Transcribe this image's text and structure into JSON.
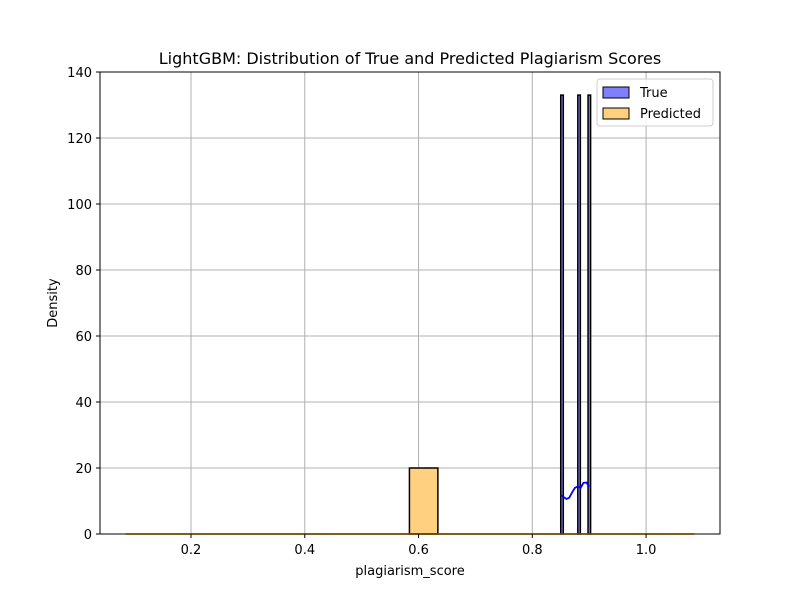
{
  "chart_data": {
    "type": "histogram",
    "title": "LightGBM: Distribution of True and Predicted Plagiarism Scores",
    "xlabel": "plagiarism_score",
    "ylabel": "Density",
    "xlim": [
      0.04,
      1.13
    ],
    "ylim": [
      0,
      140
    ],
    "xticks": [
      {
        "value": 0.2,
        "label": "0.2"
      },
      {
        "value": 0.4,
        "label": "0.4"
      },
      {
        "value": 0.6,
        "label": "0.6"
      },
      {
        "value": 0.8,
        "label": "0.8"
      },
      {
        "value": 1.0,
        "label": "1.0"
      }
    ],
    "yticks": [
      {
        "value": 0,
        "label": "0"
      },
      {
        "value": 20,
        "label": "20"
      },
      {
        "value": 40,
        "label": "40"
      },
      {
        "value": 60,
        "label": "60"
      },
      {
        "value": 80,
        "label": "80"
      },
      {
        "value": 100,
        "label": "100"
      },
      {
        "value": 120,
        "label": "120"
      },
      {
        "value": 140,
        "label": "140"
      }
    ],
    "grid": true,
    "legend_position": "upper-right",
    "series": [
      {
        "name": "True",
        "color": "#8080ff",
        "kde_color": "#0000ff",
        "bins": [
          {
            "x0": 0.85,
            "x1": 0.8545,
            "density": 133
          },
          {
            "x0": 0.88,
            "x1": 0.8845,
            "density": 133
          },
          {
            "x0": 0.898,
            "x1": 0.9025,
            "density": 133
          }
        ],
        "kde": [
          [
            0.85,
            11.8
          ],
          [
            0.855,
            11.2
          ],
          [
            0.86,
            10.6
          ],
          [
            0.865,
            11.0
          ],
          [
            0.87,
            12.6
          ],
          [
            0.875,
            14.0
          ],
          [
            0.88,
            14.4
          ],
          [
            0.885,
            14.0
          ],
          [
            0.89,
            15.5
          ],
          [
            0.895,
            15.6
          ],
          [
            0.9,
            14.4
          ]
        ]
      },
      {
        "name": "Predicted",
        "color": "#ffd080",
        "kde_color": "#ffa500",
        "bins": [
          {
            "x0": 0.584,
            "x1": 0.634,
            "density": 20
          }
        ],
        "kde": [
          [
            0.085,
            0.0
          ],
          [
            1.085,
            0.0
          ]
        ]
      }
    ]
  }
}
